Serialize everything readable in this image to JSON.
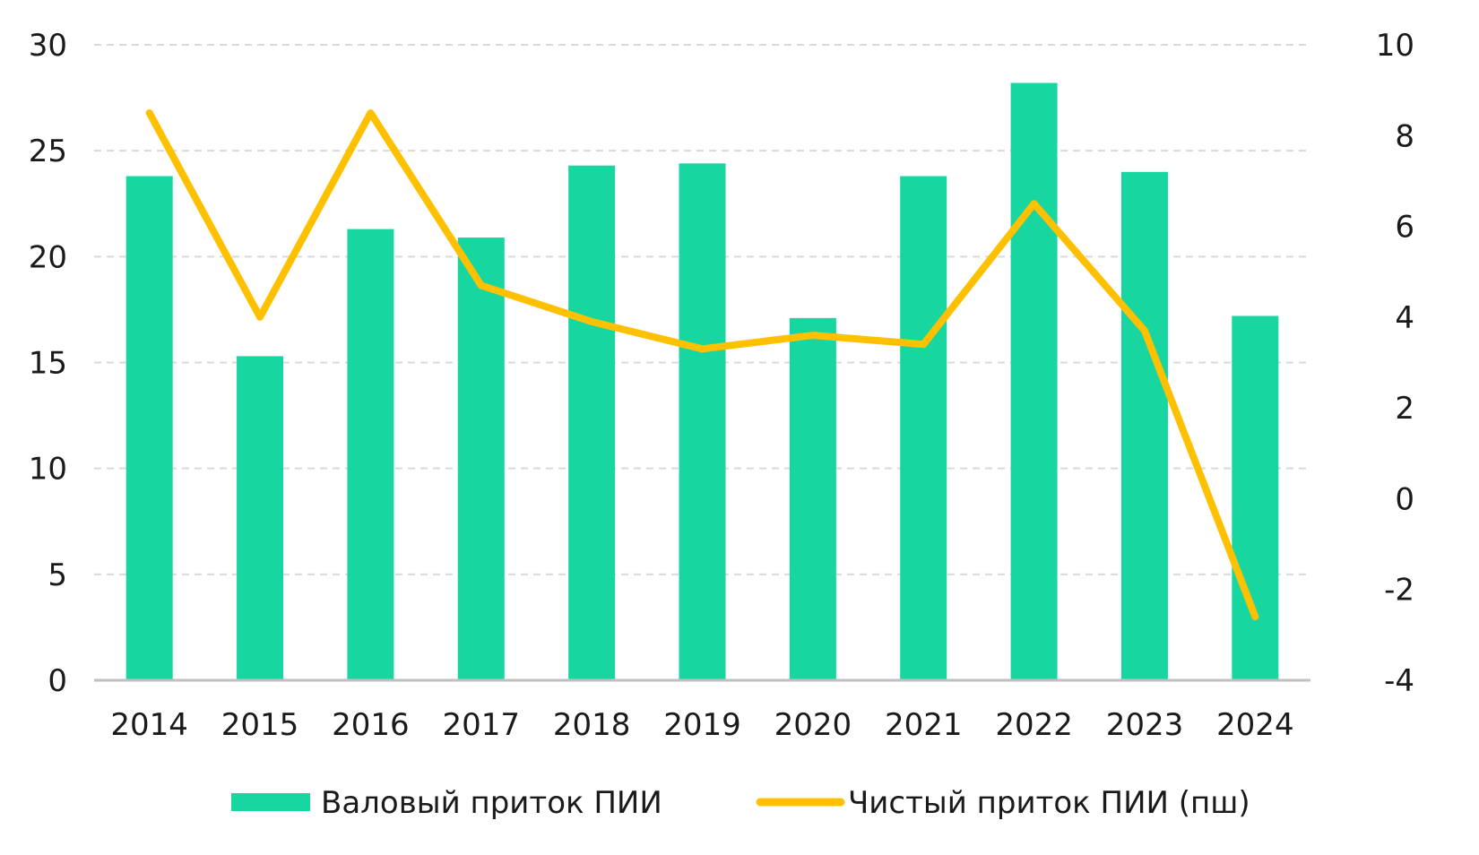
{
  "chart_data": {
    "type": "bar",
    "categories": [
      "2014",
      "2015",
      "2016",
      "2017",
      "2018",
      "2019",
      "2020",
      "2021",
      "2022",
      "2023",
      "2024"
    ],
    "series": [
      {
        "name": "Валовый приток ПИИ",
        "type": "bar",
        "axis": "left",
        "color": "#18D6A0",
        "values": [
          23.8,
          15.3,
          21.3,
          20.9,
          24.3,
          24.4,
          17.1,
          23.8,
          28.2,
          24.0,
          17.2
        ]
      },
      {
        "name": "Чистый приток ПИИ (пш)",
        "type": "line",
        "axis": "right",
        "color": "#FFC000",
        "values": [
          8.5,
          4.0,
          8.5,
          4.7,
          3.9,
          3.3,
          3.6,
          3.4,
          6.5,
          3.7,
          -2.6
        ]
      }
    ],
    "y_left": {
      "ylim": [
        0,
        30
      ],
      "ticks": [
        "0",
        "5",
        "10",
        "15",
        "20",
        "25",
        "30"
      ]
    },
    "y_right": {
      "ylim": [
        -4,
        10
      ],
      "ticks": [
        "-4",
        "-2",
        "0",
        "2",
        "4",
        "6",
        "8",
        "10"
      ]
    },
    "grid": true,
    "legend": "bottom"
  }
}
